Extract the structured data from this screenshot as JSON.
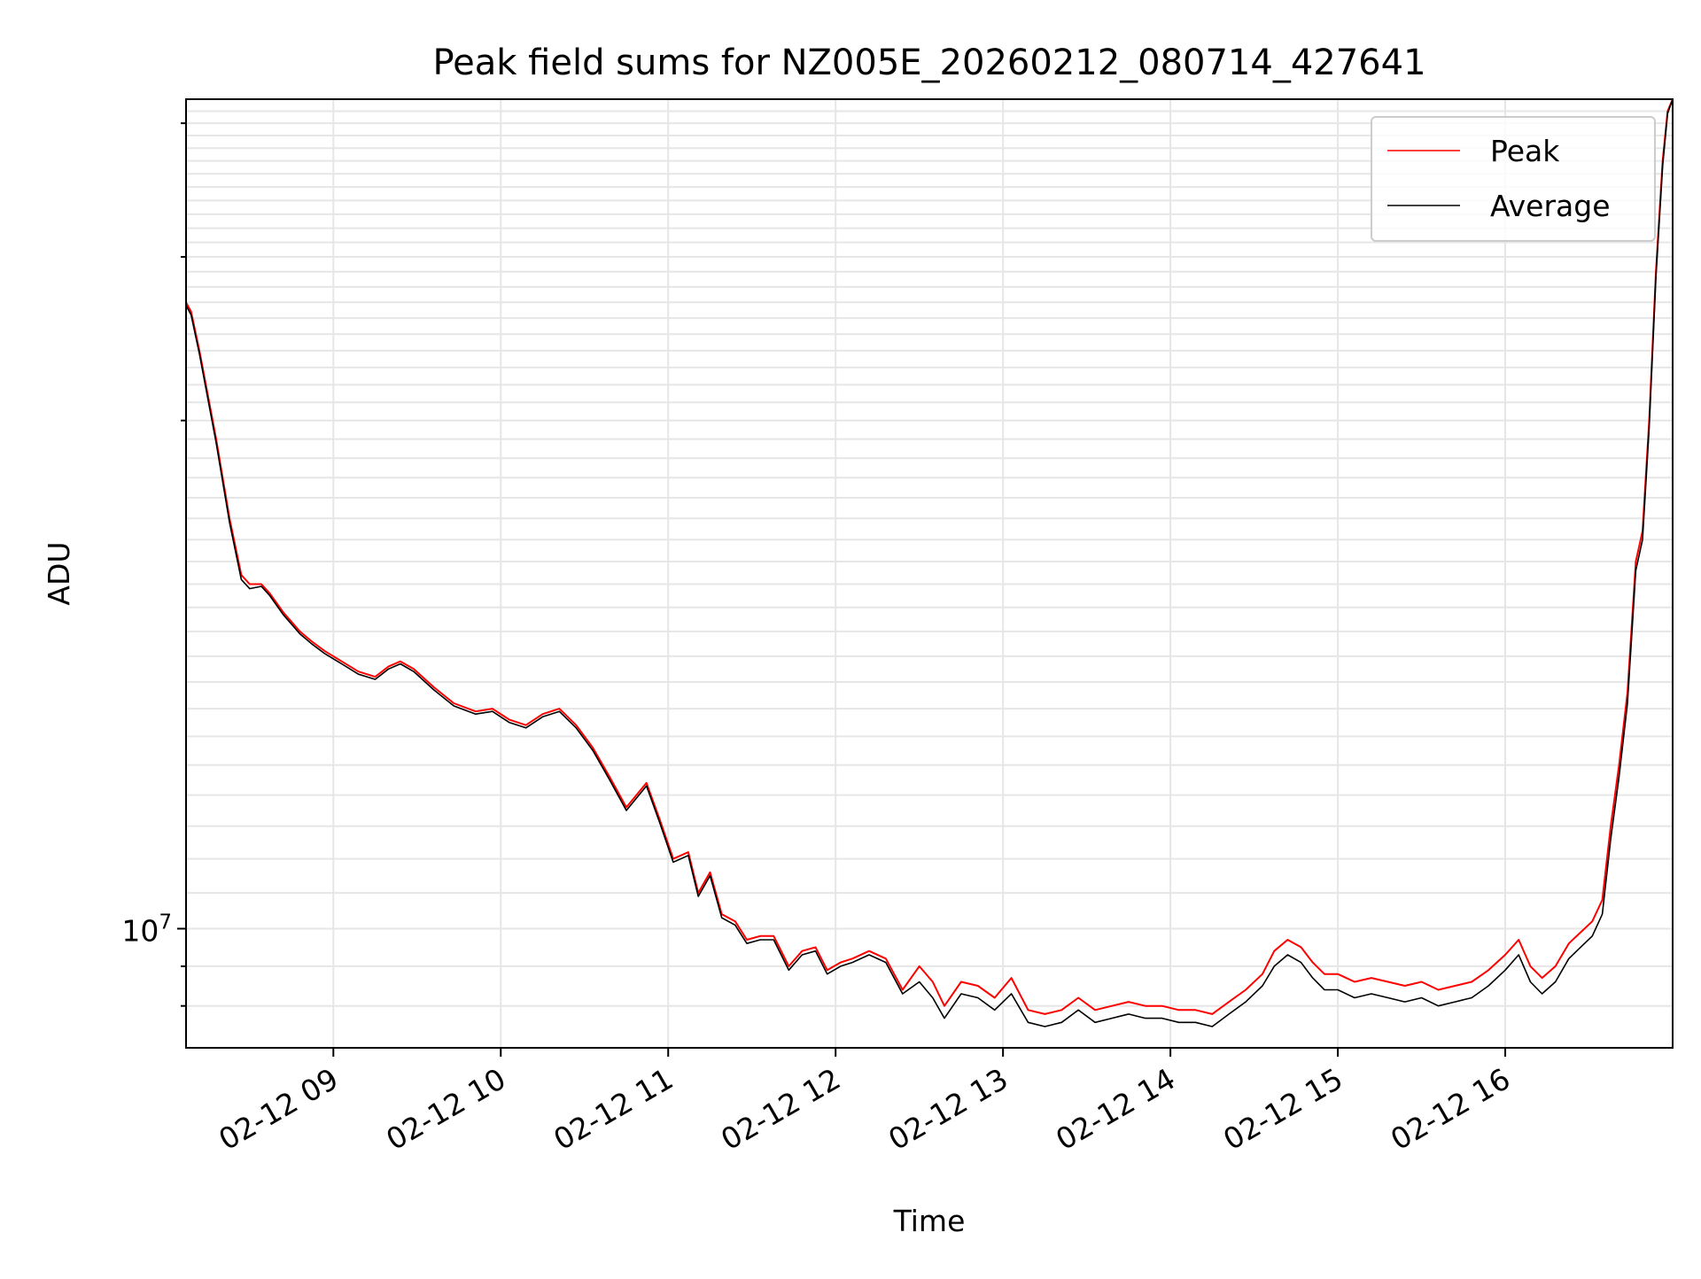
{
  "chart_data": {
    "type": "line",
    "title": "Peak field sums for NZ005E_20260212_080714_427641",
    "xlabel": "Time",
    "ylabel": "ADU",
    "yscale": "log",
    "xlim_hours": [
      8.12,
      17.0
    ],
    "ylim": [
      8500000,
      31000000
    ],
    "x_ticks": [
      {
        "label": "02-12 09",
        "hour": 9
      },
      {
        "label": "02-12 10",
        "hour": 10
      },
      {
        "label": "02-12 11",
        "hour": 11
      },
      {
        "label": "02-12 12",
        "hour": 12
      },
      {
        "label": "02-12 13",
        "hour": 13
      },
      {
        "label": "02-12 14",
        "hour": 14
      },
      {
        "label": "02-12 15",
        "hour": 15
      },
      {
        "label": "02-12 16",
        "hour": 16
      }
    ],
    "y_major_ticks": [
      {
        "base": "10",
        "exp": "7",
        "value": 10000000
      }
    ],
    "y_minor_ticks": [
      9000000,
      9500000,
      20000000,
      25000000,
      30000000
    ],
    "y_grid_values": [
      9000000,
      9500000,
      10000000,
      10500000,
      11000000,
      11500000,
      12000000,
      12500000,
      13000000,
      13500000,
      14000000,
      14500000,
      15000000,
      15500000,
      16000000,
      16500000,
      17000000,
      17500000,
      18000000,
      18500000,
      19000000,
      19500000,
      20000000,
      20500000,
      21000000,
      21500000,
      22000000,
      22500000,
      23000000,
      23500000,
      24000000,
      24500000,
      25000000,
      25500000,
      26000000,
      26500000,
      27000000,
      27500000,
      28000000,
      28500000,
      29000000,
      29500000,
      30000000,
      30500000
    ],
    "legend": {
      "placement": "top-right"
    },
    "series": [
      {
        "name": "Peak",
        "color": "#ff0000",
        "x": [
          8.12,
          8.15,
          8.2,
          8.3,
          8.38,
          8.45,
          8.5,
          8.57,
          8.62,
          8.7,
          8.8,
          8.87,
          8.95,
          9.05,
          9.15,
          9.25,
          9.33,
          9.4,
          9.48,
          9.6,
          9.72,
          9.85,
          9.95,
          10.05,
          10.15,
          10.25,
          10.35,
          10.45,
          10.55,
          10.65,
          10.75,
          10.87,
          10.95,
          11.03,
          11.12,
          11.18,
          11.25,
          11.32,
          11.4,
          11.47,
          11.55,
          11.63,
          11.72,
          11.8,
          11.88,
          11.95,
          12.03,
          12.1,
          12.2,
          12.3,
          12.4,
          12.5,
          12.58,
          12.65,
          12.75,
          12.85,
          12.95,
          13.05,
          13.15,
          13.25,
          13.35,
          13.45,
          13.55,
          13.65,
          13.75,
          13.85,
          13.95,
          14.05,
          14.15,
          14.25,
          14.35,
          14.45,
          14.55,
          14.62,
          14.7,
          14.78,
          14.85,
          14.92,
          15.0,
          15.1,
          15.2,
          15.3,
          15.4,
          15.5,
          15.6,
          15.7,
          15.8,
          15.9,
          16.0,
          16.08,
          16.15,
          16.22,
          16.3,
          16.38,
          16.45,
          16.52,
          16.58,
          16.63,
          16.68,
          16.73,
          16.78,
          16.82,
          16.86,
          16.9,
          16.94,
          16.97,
          17.0
        ],
        "y": [
          23500000,
          23200000,
          22000000,
          19500000,
          17500000,
          16200000,
          16000000,
          16000000,
          15800000,
          15400000,
          15000000,
          14800000,
          14600000,
          14400000,
          14200000,
          14100000,
          14300000,
          14400000,
          14250000,
          13900000,
          13600000,
          13450000,
          13500000,
          13300000,
          13200000,
          13400000,
          13500000,
          13200000,
          12800000,
          12300000,
          11800000,
          12200000,
          11600000,
          11000000,
          11100000,
          10500000,
          10800000,
          10200000,
          10100000,
          9850000,
          9900000,
          9900000,
          9500000,
          9700000,
          9750000,
          9450000,
          9550000,
          9600000,
          9700000,
          9600000,
          9200000,
          9500000,
          9300000,
          9000000,
          9300000,
          9250000,
          9100000,
          9350000,
          8950000,
          8900000,
          8950000,
          9100000,
          8950000,
          9000000,
          9050000,
          9000000,
          9000000,
          8950000,
          8950000,
          8900000,
          9050000,
          9200000,
          9400000,
          9700000,
          9850000,
          9750000,
          9550000,
          9400000,
          9400000,
          9300000,
          9350000,
          9300000,
          9250000,
          9300000,
          9200000,
          9250000,
          9300000,
          9450000,
          9650000,
          9850000,
          9500000,
          9350000,
          9500000,
          9800000,
          9950000,
          10100000,
          10400000,
          11500000,
          12500000,
          13800000,
          16500000,
          17200000,
          20000000,
          24500000,
          28500000,
          30500000,
          31000000
        ]
      },
      {
        "name": "Average",
        "color": "#000000",
        "x": [
          8.12,
          8.15,
          8.2,
          8.3,
          8.38,
          8.45,
          8.5,
          8.57,
          8.62,
          8.7,
          8.8,
          8.87,
          8.95,
          9.05,
          9.15,
          9.25,
          9.33,
          9.4,
          9.48,
          9.6,
          9.72,
          9.85,
          9.95,
          10.05,
          10.15,
          10.25,
          10.35,
          10.45,
          10.55,
          10.65,
          10.75,
          10.87,
          10.95,
          11.03,
          11.12,
          11.18,
          11.25,
          11.32,
          11.4,
          11.47,
          11.55,
          11.63,
          11.72,
          11.8,
          11.88,
          11.95,
          12.03,
          12.1,
          12.2,
          12.3,
          12.4,
          12.5,
          12.58,
          12.65,
          12.75,
          12.85,
          12.95,
          13.05,
          13.15,
          13.25,
          13.35,
          13.45,
          13.55,
          13.65,
          13.75,
          13.85,
          13.95,
          14.05,
          14.15,
          14.25,
          14.35,
          14.45,
          14.55,
          14.62,
          14.7,
          14.78,
          14.85,
          14.92,
          15.0,
          15.1,
          15.2,
          15.3,
          15.4,
          15.5,
          15.6,
          15.7,
          15.8,
          15.9,
          16.0,
          16.08,
          16.15,
          16.22,
          16.3,
          16.38,
          16.45,
          16.52,
          16.58,
          16.63,
          16.68,
          16.73,
          16.78,
          16.82,
          16.86,
          16.9,
          16.94,
          16.97,
          17.0
        ],
        "y": [
          23400000,
          23100000,
          21900000,
          19400000,
          17400000,
          16100000,
          15900000,
          15950000,
          15750000,
          15350000,
          14950000,
          14750000,
          14550000,
          14350000,
          14150000,
          14050000,
          14250000,
          14350000,
          14200000,
          13850000,
          13550000,
          13400000,
          13450000,
          13250000,
          13150000,
          13350000,
          13450000,
          13150000,
          12750000,
          12250000,
          11750000,
          12150000,
          11550000,
          10950000,
          11050000,
          10450000,
          10750000,
          10150000,
          10050000,
          9800000,
          9850000,
          9850000,
          9450000,
          9650000,
          9700000,
          9400000,
          9500000,
          9550000,
          9650000,
          9550000,
          9150000,
          9300000,
          9100000,
          8850000,
          9150000,
          9100000,
          8950000,
          9150000,
          8800000,
          8750000,
          8800000,
          8950000,
          8800000,
          8850000,
          8900000,
          8850000,
          8850000,
          8800000,
          8800000,
          8750000,
          8900000,
          9050000,
          9250000,
          9500000,
          9650000,
          9550000,
          9350000,
          9200000,
          9200000,
          9100000,
          9150000,
          9100000,
          9050000,
          9100000,
          9000000,
          9050000,
          9100000,
          9250000,
          9450000,
          9650000,
          9300000,
          9150000,
          9300000,
          9600000,
          9750000,
          9900000,
          10200000,
          11300000,
          12300000,
          13600000,
          16300000,
          17000000,
          19800000,
          24300000,
          28300000,
          30400000,
          31000000
        ]
      }
    ]
  }
}
